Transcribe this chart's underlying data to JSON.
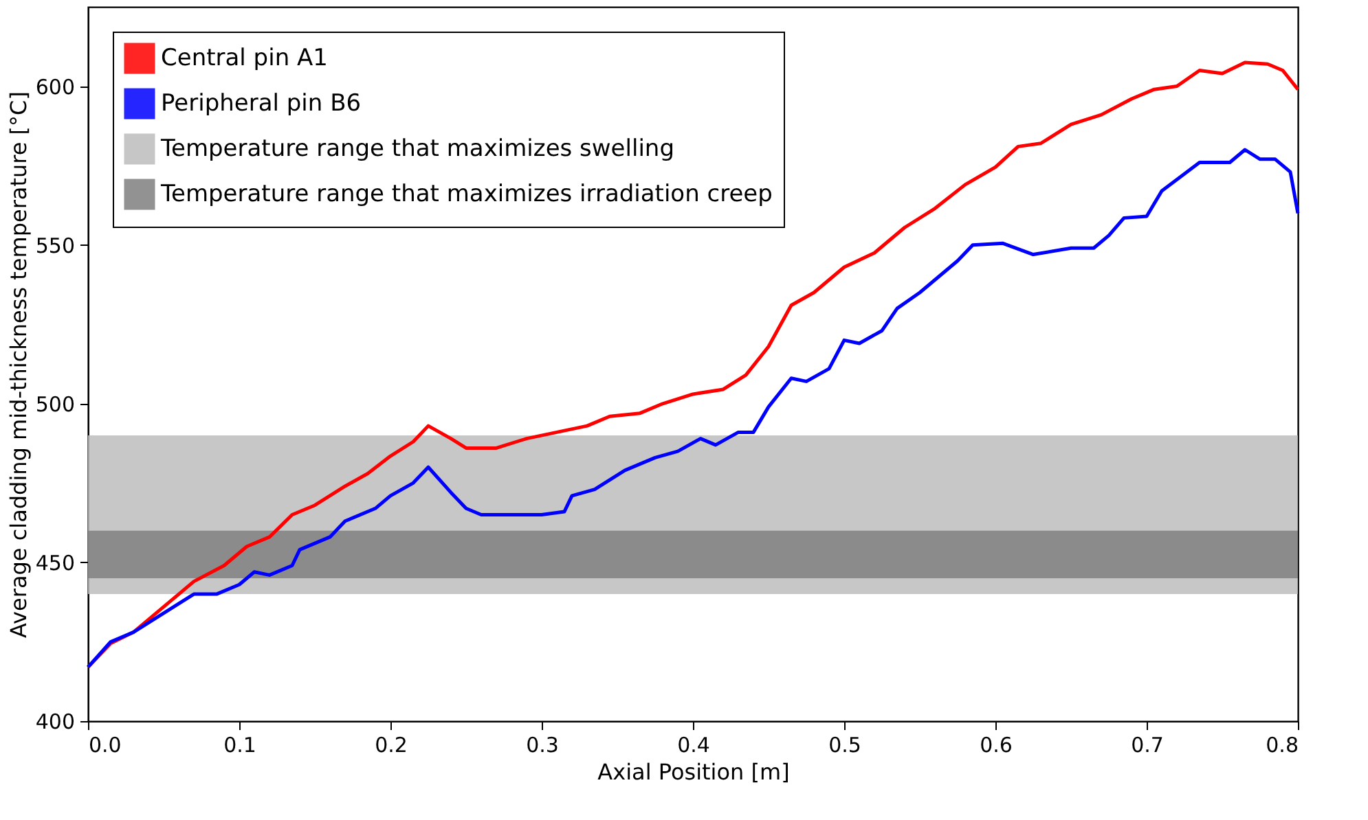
{
  "chart_data": {
    "type": "line",
    "xlabel": "Axial Position [m]",
    "ylabel": "Average cladding mid-thickness temperature [°C]",
    "xlim": [
      0,
      0.8
    ],
    "xticks": [
      {
        "value": 0,
        "label": "0.0"
      },
      0.1,
      0.2,
      0.3,
      0.4,
      0.5,
      0.6,
      0.7,
      0.8
    ],
    "ylim": [
      400,
      625
    ],
    "yticks": [
      400,
      450,
      500,
      550,
      600
    ],
    "grid": false,
    "legend": "top left",
    "line_style": "solid",
    "marker": "none",
    "series": [
      {
        "name": "Central pin A1",
        "color": "#ff0000",
        "x": [
          0,
          0.015,
          0.03,
          0.05,
          0.07,
          0.09,
          0.105,
          0.12,
          0.135,
          0.15,
          0.17,
          0.185,
          0.2,
          0.215,
          0.225,
          0.24,
          0.25,
          0.27,
          0.29,
          0.31,
          0.33,
          0.345,
          0.365,
          0.38,
          0.4,
          0.42,
          0.435,
          0.45,
          0.465,
          0.48,
          0.5,
          0.52,
          0.54,
          0.56,
          0.58,
          0.6,
          0.615,
          0.63,
          0.65,
          0.67,
          0.69,
          0.705,
          0.72,
          0.735,
          0.75,
          0.765,
          0.78,
          0.79,
          0.8
        ],
        "values": [
          417,
          424.5,
          428,
          436,
          444,
          449,
          455,
          458,
          465,
          468,
          474,
          478,
          483.5,
          488,
          493,
          489,
          486,
          486,
          489,
          491,
          493,
          496,
          497,
          500,
          503,
          504.5,
          509,
          518,
          531,
          535,
          543,
          547.5,
          555.5,
          561.5,
          569,
          574.5,
          581,
          582,
          588,
          591,
          596,
          599,
          600,
          605,
          604,
          607.5,
          607,
          605,
          599
        ]
      },
      {
        "name": "Peripheral pin B6",
        "color": "#0000ff",
        "x": [
          0,
          0.015,
          0.03,
          0.05,
          0.07,
          0.085,
          0.1,
          0.11,
          0.12,
          0.135,
          0.14,
          0.16,
          0.17,
          0.19,
          0.2,
          0.215,
          0.225,
          0.24,
          0.25,
          0.26,
          0.28,
          0.3,
          0.315,
          0.32,
          0.335,
          0.355,
          0.375,
          0.39,
          0.405,
          0.415,
          0.43,
          0.44,
          0.45,
          0.465,
          0.475,
          0.49,
          0.5,
          0.51,
          0.525,
          0.535,
          0.55,
          0.575,
          0.585,
          0.605,
          0.625,
          0.65,
          0.665,
          0.675,
          0.685,
          0.7,
          0.71,
          0.735,
          0.755,
          0.765,
          0.775,
          0.785,
          0.795,
          0.8
        ],
        "values": [
          417,
          425,
          428,
          434,
          440,
          440,
          443,
          447,
          446,
          449,
          454,
          458,
          463,
          467,
          471,
          475,
          480,
          472,
          467,
          465,
          465,
          465,
          466,
          471,
          473,
          479,
          483,
          485,
          489,
          487,
          491,
          491,
          499,
          508,
          507,
          511,
          520,
          519,
          523,
          530,
          535,
          545,
          550,
          550.5,
          547,
          549,
          549,
          553,
          558.5,
          559,
          567,
          576,
          576,
          580,
          577,
          577,
          573,
          560
        ]
      }
    ],
    "bands": [
      {
        "axis": "y",
        "from": 440,
        "to": 490,
        "label": "Temperature range that maximizes swelling",
        "color": "#bdbdbd"
      },
      {
        "axis": "y",
        "from": 445,
        "to": 460,
        "label": "Temperature range that maximizes irradiation creep",
        "color": "#808080"
      }
    ]
  }
}
